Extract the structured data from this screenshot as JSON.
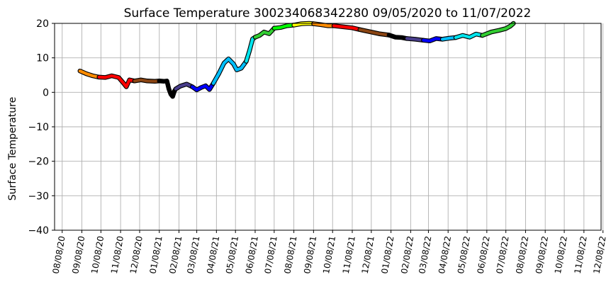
{
  "chart_data": {
    "type": "line",
    "title": "Surface Temperature 300234068342280  09/05/2020 to 11/07/2022",
    "xlabel": "",
    "ylabel": "Surface Temperature",
    "ylim": [
      -40,
      20
    ],
    "yticks": [
      -40,
      -30,
      -20,
      -10,
      0,
      10,
      20
    ],
    "ytick_labels": [
      "−40",
      "−30",
      "−20",
      "−10",
      "0",
      "10",
      "20"
    ],
    "xlim": [
      "2020-07-27",
      "2022-12-05"
    ],
    "xticks": [
      "2020-08-08",
      "2020-09-08",
      "2020-10-08",
      "2020-11-08",
      "2020-12-08",
      "2021-01-08",
      "2021-02-08",
      "2021-03-08",
      "2021-04-08",
      "2021-05-08",
      "2021-06-08",
      "2021-07-08",
      "2021-08-08",
      "2021-09-08",
      "2021-10-08",
      "2021-11-08",
      "2021-12-08",
      "2022-01-08",
      "2022-02-08",
      "2022-03-08",
      "2022-04-08",
      "2022-05-08",
      "2022-06-08",
      "2022-07-08",
      "2022-08-08",
      "2022-09-08",
      "2022-10-08",
      "2022-11-08",
      "2022-12-08"
    ],
    "xtick_labels": [
      "08/08/20",
      "09/08/20",
      "10/08/20",
      "11/08/20",
      "12/08/20",
      "01/08/21",
      "02/08/21",
      "03/08/21",
      "04/08/21",
      "05/08/21",
      "06/08/21",
      "07/08/21",
      "08/08/21",
      "09/08/21",
      "10/08/21",
      "11/08/21",
      "12/08/21",
      "01/08/22",
      "02/08/22",
      "03/08/22",
      "04/08/22",
      "05/08/22",
      "06/08/22",
      "07/08/22",
      "08/08/22",
      "09/08/22",
      "10/08/22",
      "11/08/22",
      "12/08/22"
    ],
    "grid": true,
    "series": [
      {
        "color": "#ff8c00",
        "points": [
          [
            "2020-09-05",
            6.2
          ],
          [
            "2020-09-15",
            5.4
          ],
          [
            "2020-09-25",
            4.8
          ],
          [
            "2020-10-05",
            4.4
          ]
        ]
      },
      {
        "color": "#ff0000",
        "points": [
          [
            "2020-10-05",
            4.4
          ],
          [
            "2020-10-15",
            4.3
          ],
          [
            "2020-10-25",
            4.8
          ],
          [
            "2020-11-05",
            4.3
          ],
          [
            "2020-11-12",
            2.8
          ],
          [
            "2020-11-17",
            1.6
          ],
          [
            "2020-11-22",
            3.6
          ],
          [
            "2020-11-30",
            3.3
          ]
        ]
      },
      {
        "color": "#8b4513",
        "points": [
          [
            "2020-11-30",
            3.3
          ],
          [
            "2020-12-10",
            3.6
          ],
          [
            "2020-12-20",
            3.3
          ],
          [
            "2021-01-01",
            3.2
          ],
          [
            "2021-01-08",
            3.3
          ]
        ]
      },
      {
        "color": "#000000",
        "points": [
          [
            "2021-01-08",
            3.3
          ],
          [
            "2021-01-15",
            3.2
          ],
          [
            "2021-01-20",
            3.3
          ],
          [
            "2021-01-23",
            1.0
          ],
          [
            "2021-01-26",
            -0.5
          ],
          [
            "2021-01-29",
            -1.2
          ],
          [
            "2021-02-01",
            0.4
          ],
          [
            "2021-02-03",
            1.0
          ]
        ]
      },
      {
        "color": "#483d8b",
        "points": [
          [
            "2021-02-03",
            1.0
          ],
          [
            "2021-02-10",
            1.8
          ],
          [
            "2021-02-20",
            2.4
          ],
          [
            "2021-03-01",
            1.6
          ]
        ]
      },
      {
        "color": "#0000ff",
        "points": [
          [
            "2021-03-01",
            1.6
          ],
          [
            "2021-03-08",
            0.7
          ],
          [
            "2021-03-15",
            1.4
          ],
          [
            "2021-03-22",
            1.9
          ],
          [
            "2021-03-28",
            0.8
          ],
          [
            "2021-04-03",
            2.6
          ]
        ]
      },
      {
        "color": "#00bfff",
        "points": [
          [
            "2021-04-03",
            2.6
          ],
          [
            "2021-04-12",
            5.5
          ],
          [
            "2021-04-20",
            8.5
          ],
          [
            "2021-04-27",
            9.7
          ],
          [
            "2021-05-05",
            8.2
          ],
          [
            "2021-05-10",
            6.5
          ],
          [
            "2021-05-17",
            7.0
          ],
          [
            "2021-05-25",
            9.0
          ]
        ]
      },
      {
        "color": "#00e5ee",
        "points": [
          [
            "2021-05-25",
            9.0
          ],
          [
            "2021-05-30",
            12.0
          ],
          [
            "2021-06-04",
            15.5
          ],
          [
            "2021-06-08",
            16.0
          ]
        ]
      },
      {
        "color": "#32cd32",
        "points": [
          [
            "2021-06-08",
            16.0
          ],
          [
            "2021-06-15",
            16.5
          ],
          [
            "2021-06-22",
            17.5
          ],
          [
            "2021-06-30",
            17.0
          ],
          [
            "2021-07-08",
            18.6
          ]
        ]
      },
      {
        "color": "#00ff00",
        "points": [
          [
            "2021-07-08",
            18.6
          ],
          [
            "2021-07-18",
            18.8
          ],
          [
            "2021-07-28",
            19.3
          ],
          [
            "2021-08-08",
            19.5
          ]
        ]
      },
      {
        "color": "#ffff00",
        "points": [
          [
            "2021-08-08",
            19.5
          ],
          [
            "2021-08-20",
            19.9
          ],
          [
            "2021-09-01",
            20.0
          ],
          [
            "2021-09-08",
            19.9
          ]
        ]
      },
      {
        "color": "#ff8c00",
        "points": [
          [
            "2021-09-08",
            19.9
          ],
          [
            "2021-09-20",
            19.6
          ],
          [
            "2021-10-01",
            19.3
          ],
          [
            "2021-10-10",
            19.3
          ]
        ]
      },
      {
        "color": "#ff0000",
        "points": [
          [
            "2021-10-10",
            19.3
          ],
          [
            "2021-10-25",
            19.0
          ],
          [
            "2021-11-08",
            18.7
          ],
          [
            "2021-11-20",
            18.2
          ]
        ]
      },
      {
        "color": "#8b4513",
        "points": [
          [
            "2021-11-20",
            18.2
          ],
          [
            "2021-12-05",
            17.6
          ],
          [
            "2021-12-20",
            17.0
          ],
          [
            "2022-01-05",
            16.6
          ]
        ]
      },
      {
        "color": "#000000",
        "points": [
          [
            "2022-01-05",
            16.6
          ],
          [
            "2022-01-15",
            16.0
          ],
          [
            "2022-01-25",
            15.9
          ],
          [
            "2022-02-02",
            15.6
          ]
        ]
      },
      {
        "color": "#483d8b",
        "points": [
          [
            "2022-02-02",
            15.6
          ],
          [
            "2022-02-15",
            15.4
          ],
          [
            "2022-02-28",
            15.1
          ]
        ]
      },
      {
        "color": "#0000ff",
        "points": [
          [
            "2022-02-28",
            15.1
          ],
          [
            "2022-03-10",
            14.9
          ],
          [
            "2022-03-20",
            15.6
          ],
          [
            "2022-03-30",
            15.4
          ]
        ]
      },
      {
        "color": "#00bfff",
        "points": [
          [
            "2022-03-30",
            15.4
          ],
          [
            "2022-04-10",
            15.7
          ],
          [
            "2022-04-20",
            15.9
          ]
        ]
      },
      {
        "color": "#00e5ee",
        "points": [
          [
            "2022-04-20",
            15.9
          ],
          [
            "2022-05-01",
            16.5
          ],
          [
            "2022-05-12",
            16.0
          ],
          [
            "2022-05-22",
            16.9
          ],
          [
            "2022-06-01",
            16.5
          ]
        ]
      },
      {
        "color": "#32cd32",
        "points": [
          [
            "2022-06-01",
            16.5
          ],
          [
            "2022-06-15",
            17.5
          ],
          [
            "2022-06-28",
            18.0
          ],
          [
            "2022-07-08",
            18.5
          ],
          [
            "2022-07-15",
            19.2
          ],
          [
            "2022-07-20",
            20.0
          ]
        ]
      }
    ]
  }
}
